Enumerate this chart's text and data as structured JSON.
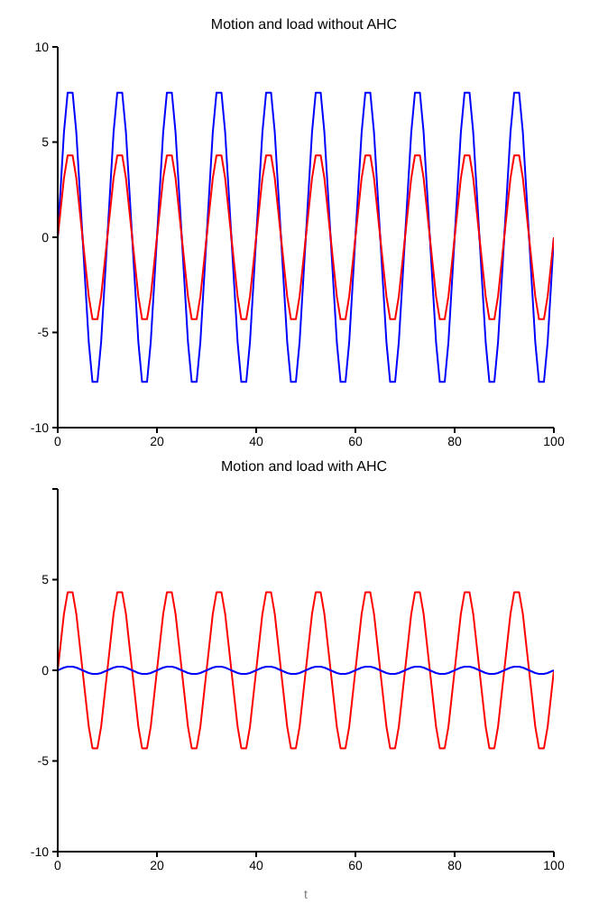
{
  "chart_data": [
    {
      "type": "line",
      "title": "Motion and load without AHC",
      "x": [
        0,
        1.25,
        2,
        3,
        3.75,
        5,
        6.25,
        7,
        8,
        8.75,
        10,
        11.25,
        12,
        13,
        13.75,
        15,
        16.25,
        17,
        18,
        18.75,
        20,
        21.25,
        22,
        23,
        23.75,
        25,
        26.25,
        27,
        28,
        28.75,
        30,
        31.25,
        32,
        33,
        33.75,
        35,
        36.25,
        37,
        38,
        38.75,
        40,
        41.25,
        42,
        43,
        43.75,
        45,
        46.25,
        47,
        48,
        48.75,
        50,
        51.25,
        52,
        53,
        53.75,
        55,
        56.25,
        57,
        58,
        58.75,
        60,
        61.25,
        62,
        63,
        63.75,
        65,
        66.25,
        67,
        68,
        68.75,
        70,
        71.25,
        72,
        73,
        73.75,
        75,
        76.25,
        77,
        78,
        78.75,
        80,
        81.25,
        82,
        83,
        83.75,
        85,
        86.25,
        87,
        88,
        88.75,
        90,
        91.25,
        92,
        93,
        93.75,
        95,
        96.25,
        97,
        98,
        98.75,
        100
      ],
      "xlim": [
        0,
        100
      ],
      "xticks": [
        0,
        20,
        40,
        60,
        80,
        100
      ],
      "ylim": [
        -10,
        10
      ],
      "yticks": [
        -10,
        -5,
        0,
        5,
        10
      ],
      "line_style": "solid",
      "marker": "none",
      "grid": false,
      "legend": false,
      "series": [
        {
          "color": "#0000ff",
          "values": [
            0,
            5.5,
            7.6,
            7.6,
            5.5,
            0,
            -5.5,
            -7.6,
            -7.6,
            -5.5,
            0,
            5.5,
            7.6,
            7.6,
            5.5,
            0,
            -5.5,
            -7.6,
            -7.6,
            -5.5,
            0,
            5.5,
            7.6,
            7.6,
            5.5,
            0,
            -5.5,
            -7.6,
            -7.6,
            -5.5,
            0,
            5.5,
            7.6,
            7.6,
            5.5,
            0,
            -5.5,
            -7.6,
            -7.6,
            -5.5,
            0,
            5.5,
            7.6,
            7.6,
            5.5,
            0,
            -5.5,
            -7.6,
            -7.6,
            -5.5,
            0,
            5.5,
            7.6,
            7.6,
            5.5,
            0,
            -5.5,
            -7.6,
            -7.6,
            -5.5,
            0,
            5.5,
            7.6,
            7.6,
            5.5,
            0,
            -5.5,
            -7.6,
            -7.6,
            -5.5,
            0,
            5.5,
            7.6,
            7.6,
            5.5,
            0,
            -5.5,
            -7.6,
            -7.6,
            -5.5,
            0,
            5.5,
            7.6,
            7.6,
            5.5,
            0,
            -5.5,
            -7.6,
            -7.6,
            -5.5,
            0,
            5.5,
            7.6,
            7.6,
            5.5,
            0,
            -5.5,
            -7.6,
            -7.6,
            -5.5,
            0
          ]
        },
        {
          "color": "#ff0000",
          "values": [
            0,
            3.1,
            4.3,
            4.3,
            3.1,
            0,
            -3.1,
            -4.3,
            -4.3,
            -3.1,
            0,
            3.1,
            4.3,
            4.3,
            3.1,
            0,
            -3.1,
            -4.3,
            -4.3,
            -3.1,
            0,
            3.1,
            4.3,
            4.3,
            3.1,
            0,
            -3.1,
            -4.3,
            -4.3,
            -3.1,
            0,
            3.1,
            4.3,
            4.3,
            3.1,
            0,
            -3.1,
            -4.3,
            -4.3,
            -3.1,
            0,
            3.1,
            4.3,
            4.3,
            3.1,
            0,
            -3.1,
            -4.3,
            -4.3,
            -3.1,
            0,
            3.1,
            4.3,
            4.3,
            3.1,
            0,
            -3.1,
            -4.3,
            -4.3,
            -3.1,
            0,
            3.1,
            4.3,
            4.3,
            3.1,
            0,
            -3.1,
            -4.3,
            -4.3,
            -3.1,
            0,
            3.1,
            4.3,
            4.3,
            3.1,
            0,
            -3.1,
            -4.3,
            -4.3,
            -3.1,
            0,
            3.1,
            4.3,
            4.3,
            3.1,
            0,
            -3.1,
            -4.3,
            -4.3,
            -3.1,
            0,
            3.1,
            4.3,
            4.3,
            3.1,
            0,
            -3.1,
            -4.3,
            -4.3,
            -3.1,
            0
          ]
        }
      ]
    },
    {
      "type": "line",
      "title": "Motion and load with AHC",
      "xlabel": "t",
      "x": [
        0,
        1.25,
        2,
        3,
        3.75,
        5,
        6.25,
        7,
        8,
        8.75,
        10,
        11.25,
        12,
        13,
        13.75,
        15,
        16.25,
        17,
        18,
        18.75,
        20,
        21.25,
        22,
        23,
        23.75,
        25,
        26.25,
        27,
        28,
        28.75,
        30,
        31.25,
        32,
        33,
        33.75,
        35,
        36.25,
        37,
        38,
        38.75,
        40,
        41.25,
        42,
        43,
        43.75,
        45,
        46.25,
        47,
        48,
        48.75,
        50,
        51.25,
        52,
        53,
        53.75,
        55,
        56.25,
        57,
        58,
        58.75,
        60,
        61.25,
        62,
        63,
        63.75,
        65,
        66.25,
        67,
        68,
        68.75,
        70,
        71.25,
        72,
        73,
        73.75,
        75,
        76.25,
        77,
        78,
        78.75,
        80,
        81.25,
        82,
        83,
        83.75,
        85,
        86.25,
        87,
        88,
        88.75,
        90,
        91.25,
        92,
        93,
        93.75,
        95,
        96.25,
        97,
        98,
        98.75,
        100
      ],
      "xlim": [
        0,
        100
      ],
      "xticks": [
        0,
        20,
        40,
        60,
        80,
        100
      ],
      "ylim": [
        -10,
        10
      ],
      "yticks": [
        -10,
        -5,
        0,
        5,
        {
          "value": 10,
          "label": null
        }
      ],
      "line_style": "solid",
      "marker": "none",
      "grid": false,
      "legend": false,
      "series": [
        {
          "color": "#ff0000",
          "values": [
            0,
            3.1,
            4.3,
            4.3,
            3.1,
            0,
            -3.1,
            -4.3,
            -4.3,
            -3.1,
            0,
            3.1,
            4.3,
            4.3,
            3.1,
            0,
            -3.1,
            -4.3,
            -4.3,
            -3.1,
            0,
            3.1,
            4.3,
            4.3,
            3.1,
            0,
            -3.1,
            -4.3,
            -4.3,
            -3.1,
            0,
            3.1,
            4.3,
            4.3,
            3.1,
            0,
            -3.1,
            -4.3,
            -4.3,
            -3.1,
            0,
            3.1,
            4.3,
            4.3,
            3.1,
            0,
            -3.1,
            -4.3,
            -4.3,
            -3.1,
            0,
            3.1,
            4.3,
            4.3,
            3.1,
            0,
            -3.1,
            -4.3,
            -4.3,
            -3.1,
            0,
            3.1,
            4.3,
            4.3,
            3.1,
            0,
            -3.1,
            -4.3,
            -4.3,
            -3.1,
            0,
            3.1,
            4.3,
            4.3,
            3.1,
            0,
            -3.1,
            -4.3,
            -4.3,
            -3.1,
            0,
            3.1,
            4.3,
            4.3,
            3.1,
            0,
            -3.1,
            -4.3,
            -4.3,
            -3.1,
            0,
            3.1,
            4.3,
            4.3,
            3.1,
            0,
            -3.1,
            -4.3,
            -4.3,
            -3.1,
            0
          ]
        },
        {
          "color": "#0000ff",
          "values": [
            0,
            0.15,
            0.2,
            0.2,
            0.15,
            0,
            -0.15,
            -0.2,
            -0.2,
            -0.15,
            0,
            0.15,
            0.2,
            0.2,
            0.15,
            0,
            -0.15,
            -0.2,
            -0.2,
            -0.15,
            0,
            0.15,
            0.2,
            0.2,
            0.15,
            0,
            -0.15,
            -0.2,
            -0.2,
            -0.15,
            0,
            0.15,
            0.2,
            0.2,
            0.15,
            0,
            -0.15,
            -0.2,
            -0.2,
            -0.15,
            0,
            0.15,
            0.2,
            0.2,
            0.15,
            0,
            -0.15,
            -0.2,
            -0.2,
            -0.15,
            0,
            0.15,
            0.2,
            0.2,
            0.15,
            0,
            -0.15,
            -0.2,
            -0.2,
            -0.15,
            0,
            0.15,
            0.2,
            0.2,
            0.15,
            0,
            -0.15,
            -0.2,
            -0.2,
            -0.15,
            0,
            0.15,
            0.2,
            0.2,
            0.15,
            0,
            -0.15,
            -0.2,
            -0.2,
            -0.15,
            0,
            0.15,
            0.2,
            0.2,
            0.15,
            0,
            -0.15,
            -0.2,
            -0.2,
            -0.15,
            0,
            0.15,
            0.2,
            0.2,
            0.15,
            0,
            -0.15,
            -0.2,
            -0.2,
            -0.15,
            0
          ]
        }
      ]
    }
  ]
}
